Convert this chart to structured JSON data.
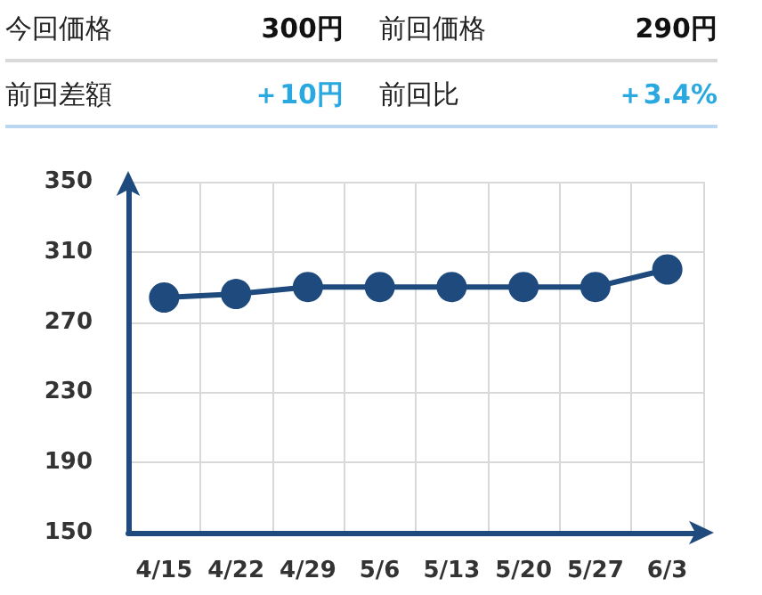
{
  "chart_data": {
    "type": "line",
    "annotations": [
      "今回価格",
      "300円",
      "前回価格",
      "290円",
      "前回差額",
      "＋10円",
      "前回比",
      "＋3.4%"
    ],
    "categories": [
      "4/15",
      "4/22",
      "4/29",
      "5/6",
      "5/13",
      "5/20",
      "5/27",
      "6/3"
    ],
    "series": [
      {
        "color": "#1e4a7e",
        "values": [
          284,
          286,
          290,
          290,
          290,
          290,
          290,
          300
        ]
      }
    ],
    "ylim": [
      150,
      350
    ],
    "yticks": [
      150,
      190,
      230,
      270,
      310,
      350
    ],
    "grid": true,
    "marker": "circle",
    "line_style": "solid"
  }
}
